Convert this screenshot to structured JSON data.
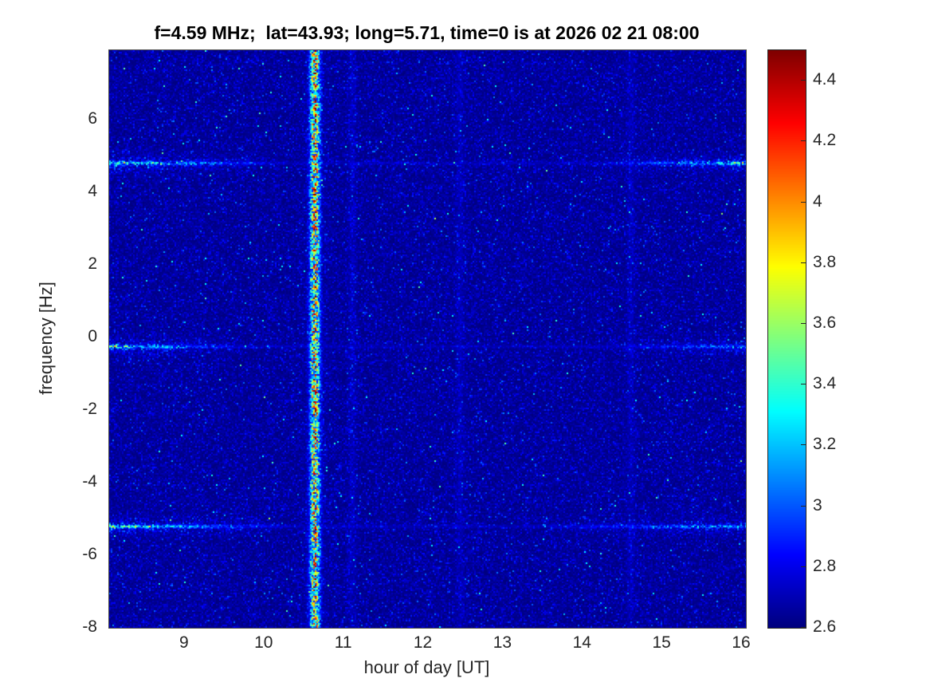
{
  "chart_data": {
    "type": "heatmap",
    "title": "f=4.59 MHz;  lat=43.93; long=5.71, time=0 is at 2026 02 21 08:00",
    "xlabel": "hour of day [UT]",
    "ylabel": "frequency [Hz]",
    "xlim": [
      8.05,
      16.05
    ],
    "ylim": [
      -8,
      7.9
    ],
    "xticks": [
      9,
      10,
      11,
      12,
      13,
      14,
      15,
      16
    ],
    "yticks": [
      -8,
      -6,
      -4,
      -2,
      0,
      2,
      4,
      6
    ],
    "grid": false,
    "colormap": "jet",
    "colorbar": {
      "min": 2.6,
      "max": 4.5,
      "ticks": [
        2.6,
        2.8,
        3,
        3.2,
        3.4,
        3.6,
        3.8,
        4,
        4.2,
        4.4
      ],
      "position": "right"
    },
    "background_level": 2.6,
    "features": {
      "vertical_stripe": {
        "hour": 10.63,
        "sigma": 0.055,
        "peak": 1.7
      },
      "horizontal_bands": [
        {
          "freq": 4.8,
          "left_fade_end": 10.2,
          "left_intensity": 0.95,
          "right_rise_start": 14.2,
          "right_intensity": 0.85,
          "line_intensity": 0.25
        },
        {
          "freq": -0.25,
          "left_fade_end": 9.8,
          "left_intensity": 0.9,
          "right_rise_start": 14.4,
          "right_intensity": 0.55,
          "line_intensity": 0.2
        },
        {
          "freq": -5.2,
          "left_fade_end": 10.3,
          "left_intensity": 0.95,
          "right_rise_start": 13.5,
          "right_intensity": 0.65,
          "line_intensity": 0.22
        }
      ],
      "faint_columns": [
        11.1,
        12.45,
        14.6
      ]
    },
    "noise": {
      "seed": 7,
      "scale": 0.07,
      "speckle_prob": 0.0035,
      "speckle_boost": 0.55
    }
  }
}
